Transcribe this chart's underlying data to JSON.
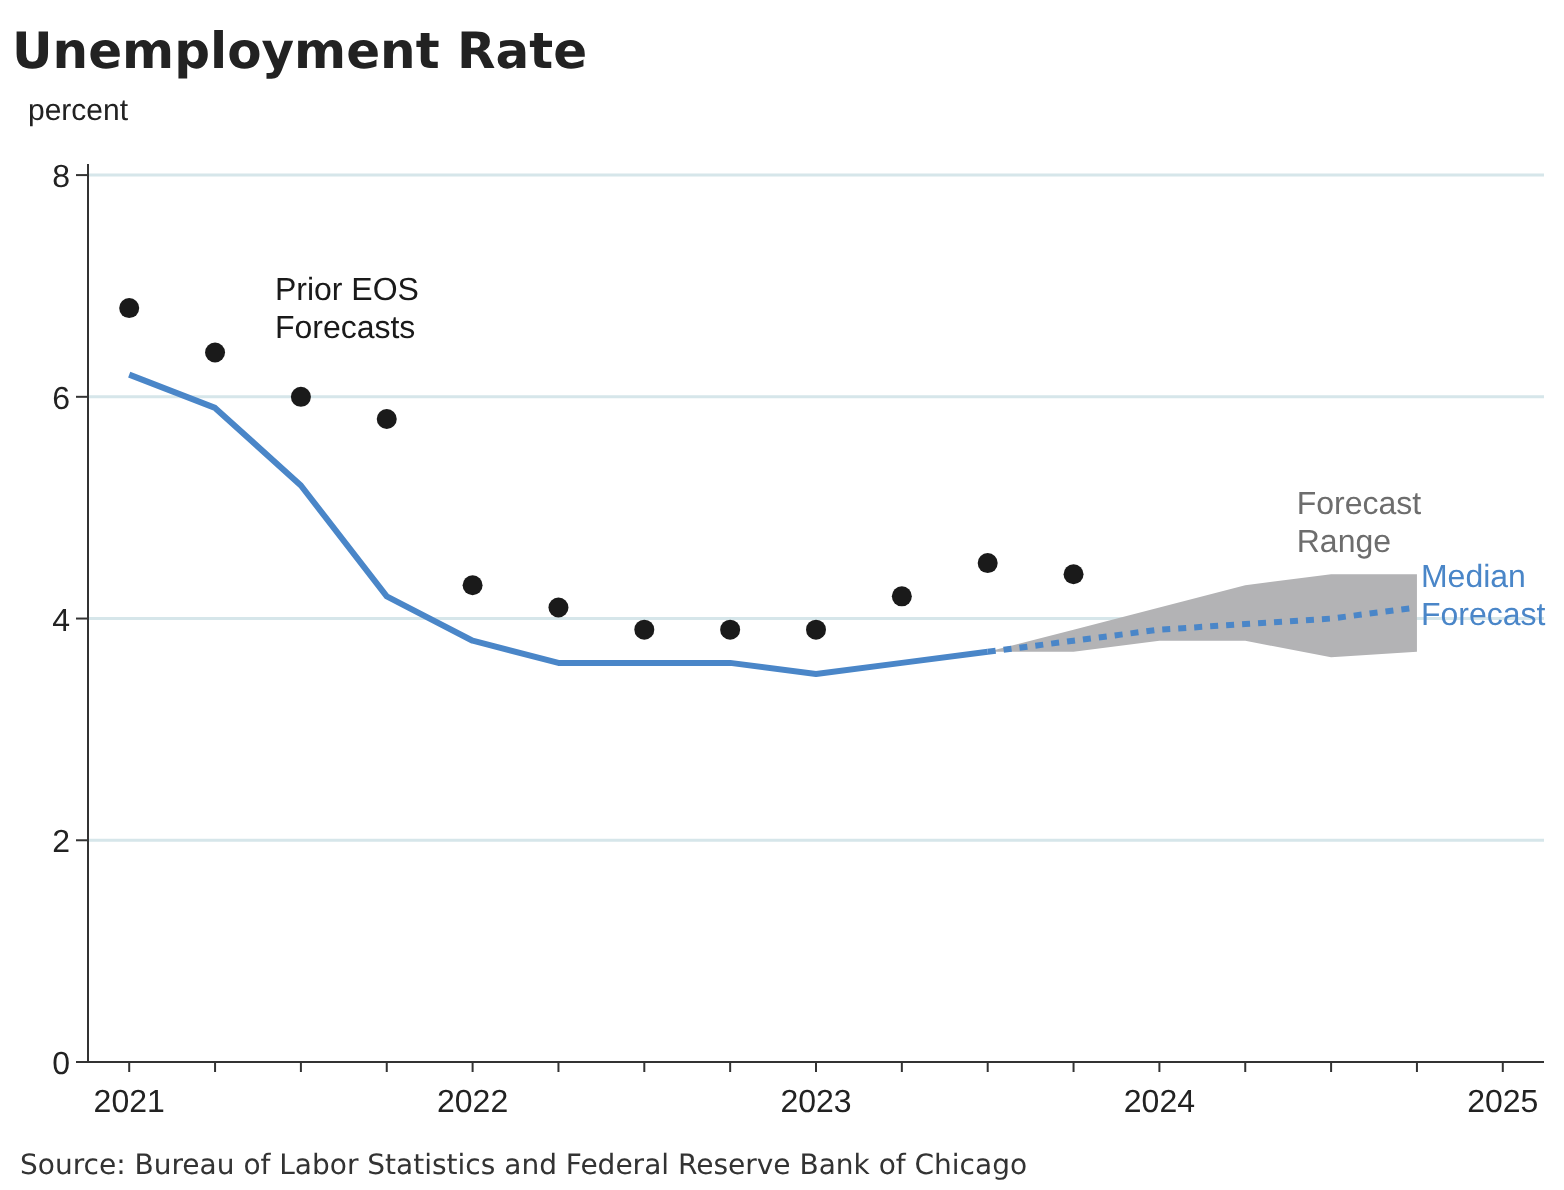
{
  "chart_data": {
    "type": "line",
    "title": "Unemployment Rate",
    "ylabel": "percent",
    "xlim": [
      2020.88,
      2025.12
    ],
    "ylim": [
      0,
      8.1
    ],
    "xticks": [
      2021,
      {
        "value": 2021.25,
        "label": null
      },
      {
        "value": 2021.5,
        "label": null
      },
      {
        "value": 2021.75,
        "label": null
      },
      2022,
      {
        "value": 2022.25,
        "label": null
      },
      {
        "value": 2022.5,
        "label": null
      },
      {
        "value": 2022.75,
        "label": null
      },
      2023,
      {
        "value": 2023.25,
        "label": null
      },
      {
        "value": 2023.5,
        "label": null
      },
      {
        "value": 2023.75,
        "label": null
      },
      2024,
      {
        "value": 2024.25,
        "label": null
      },
      {
        "value": 2024.5,
        "label": null
      },
      {
        "value": 2024.75,
        "label": null
      },
      2025
    ],
    "yticks": [
      0,
      2,
      4,
      6,
      8
    ],
    "grid": "y",
    "series": [
      {
        "name": "Prior EOS Forecasts",
        "type": "scatter",
        "marker": "circle",
        "color": "#1a1a1a",
        "x": [
          2021,
          2021.25,
          2021.5,
          2021.75,
          2022,
          2022.25,
          2022.5,
          2022.75,
          2023,
          2023.25,
          2023.5,
          2023.75
        ],
        "values": [
          6.8,
          6.4,
          6.0,
          5.8,
          4.3,
          4.1,
          3.9,
          3.9,
          3.9,
          4.2,
          4.5,
          4.4
        ]
      },
      {
        "color": "#4a86c8",
        "line_style": "solid",
        "x": [
          2021,
          2021.25,
          2021.5,
          2021.75,
          2022,
          2022.25,
          2022.5,
          2022.75,
          2023,
          2023.25,
          2023.5
        ],
        "values": [
          6.2,
          5.9,
          5.2,
          4.2,
          3.8,
          3.6,
          3.6,
          3.6,
          3.5,
          3.6,
          3.7
        ]
      },
      {
        "name": "Median Forecast",
        "color": "#4a86c8",
        "line_style": "dotted",
        "x": [
          2023.5,
          2023.75,
          2024,
          2024.25,
          2024.5,
          2024.75
        ],
        "values": [
          3.7,
          3.8,
          3.9,
          3.95,
          4.0,
          4.1
        ],
        "lower": [
          3.7,
          3.7,
          3.8,
          3.8,
          3.65,
          3.7
        ],
        "upper": [
          3.7,
          3.9,
          4.1,
          4.3,
          4.4,
          4.4
        ]
      }
    ],
    "annotations": [
      {
        "text": "Forecast Range",
        "x": 2024.4,
        "y": 4.4
      },
      "Source: Bureau of Labor Statistics and Federal Reserve Bank of Chicago"
    ]
  }
}
